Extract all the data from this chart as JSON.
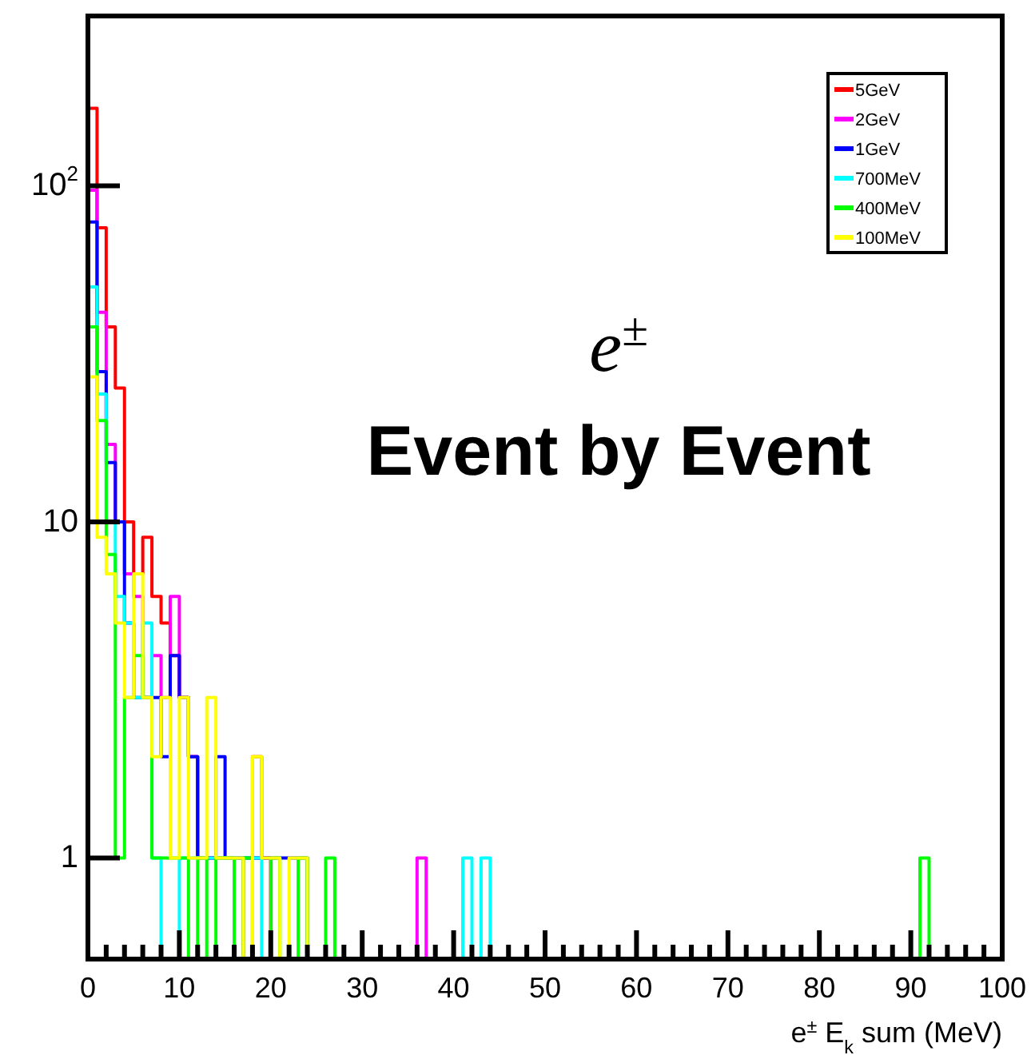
{
  "chart_data": {
    "type": "histogram",
    "xlabel": "e$^{±}$ E$_{k}$ sum (MeV)",
    "annotations": [
      "e$^{±}$",
      "Event by Event"
    ],
    "log": "y",
    "legend": "top right",
    "xlim": [
      0,
      100
    ],
    "ylim": [
      0.5,
      320
    ],
    "xticks": [
      0,
      {
        "value": 2,
        "label": null
      },
      {
        "value": 4,
        "label": null
      },
      {
        "value": 6,
        "label": null
      },
      {
        "value": 8,
        "label": null
      },
      10,
      {
        "value": 12,
        "label": null
      },
      {
        "value": 14,
        "label": null
      },
      {
        "value": 16,
        "label": null
      },
      {
        "value": 18,
        "label": null
      },
      20,
      {
        "value": 22,
        "label": null
      },
      {
        "value": 24,
        "label": null
      },
      {
        "value": 26,
        "label": null
      },
      {
        "value": 28,
        "label": null
      },
      30,
      {
        "value": 32,
        "label": null
      },
      {
        "value": 34,
        "label": null
      },
      {
        "value": 36,
        "label": null
      },
      {
        "value": 38,
        "label": null
      },
      40,
      {
        "value": 42,
        "label": null
      },
      {
        "value": 44,
        "label": null
      },
      {
        "value": 46,
        "label": null
      },
      {
        "value": 48,
        "label": null
      },
      50,
      {
        "value": 52,
        "label": null
      },
      {
        "value": 54,
        "label": null
      },
      {
        "value": 56,
        "label": null
      },
      {
        "value": 58,
        "label": null
      },
      60,
      {
        "value": 62,
        "label": null
      },
      {
        "value": 64,
        "label": null
      },
      {
        "value": 66,
        "label": null
      },
      {
        "value": 68,
        "label": null
      },
      70,
      {
        "value": 72,
        "label": null
      },
      {
        "value": 74,
        "label": null
      },
      {
        "value": 76,
        "label": null
      },
      {
        "value": 78,
        "label": null
      },
      80,
      {
        "value": 82,
        "label": null
      },
      {
        "value": 84,
        "label": null
      },
      {
        "value": 86,
        "label": null
      },
      {
        "value": 88,
        "label": null
      },
      90,
      {
        "value": 92,
        "label": null
      },
      {
        "value": 94,
        "label": null
      },
      {
        "value": 96,
        "label": null
      },
      {
        "value": 98,
        "label": null
      },
      100
    ],
    "yticks": [
      1,
      10,
      {
        "value": 100,
        "label": "10$^{2}$"
      }
    ],
    "bins": [
      0,
      1,
      2,
      3,
      4,
      5,
      6,
      7,
      8,
      9,
      10,
      11,
      12,
      13,
      14,
      15,
      16,
      17,
      18,
      19,
      20,
      21,
      22,
      23,
      24,
      25,
      26,
      27,
      28,
      29,
      30,
      31,
      32,
      33,
      34,
      35,
      36,
      37,
      38,
      39,
      40,
      41,
      42,
      43,
      44,
      45,
      46,
      47,
      48,
      49,
      50,
      51,
      52,
      53,
      54,
      55,
      56,
      57,
      58,
      59,
      60,
      61,
      62,
      63,
      64,
      65,
      66,
      67,
      68,
      69,
      70,
      71,
      72,
      73,
      74,
      75,
      76,
      77,
      78,
      79,
      80,
      81,
      82,
      83,
      84,
      85,
      86,
      87,
      88,
      89,
      90,
      91,
      92,
      93,
      94,
      95,
      96,
      97,
      98,
      99,
      100
    ],
    "series": [
      {
        "name": "5GeV",
        "color": "#ff0000",
        "values": [
          170,
          75,
          38,
          25,
          10,
          7,
          9,
          6,
          5,
          4,
          3,
          2,
          1,
          1,
          1,
          1,
          1,
          1,
          2,
          1,
          null,
          null,
          null,
          null,
          null,
          null,
          null,
          null,
          null,
          null,
          null,
          null,
          null,
          null,
          null,
          null,
          null,
          null,
          null,
          null,
          null,
          null,
          null,
          null,
          null,
          null,
          null,
          null,
          null,
          null,
          null,
          null,
          null,
          null,
          null,
          null,
          null,
          null,
          null,
          null,
          null,
          null,
          null,
          null,
          null,
          null,
          null,
          null,
          null,
          null,
          null,
          null,
          null,
          null,
          null,
          null,
          null,
          null,
          null,
          null,
          null,
          null,
          null,
          null,
          null,
          null,
          null,
          null,
          null,
          null,
          null,
          null,
          null,
          null,
          null,
          null,
          null,
          null,
          null,
          null
        ]
      },
      {
        "name": "2GeV",
        "color": "#ff00ff",
        "values": [
          97,
          42,
          17,
          10,
          7,
          6,
          3,
          4,
          3,
          6,
          3,
          2,
          1,
          1,
          1,
          1,
          1,
          null,
          1,
          1,
          null,
          null,
          null,
          null,
          null,
          null,
          null,
          null,
          null,
          null,
          null,
          null,
          null,
          null,
          null,
          null,
          1,
          null,
          null,
          null,
          null,
          null,
          null,
          null,
          null,
          null,
          null,
          null,
          null,
          null,
          null,
          null,
          null,
          null,
          null,
          null,
          null,
          null,
          null,
          null,
          null,
          null,
          null,
          null,
          null,
          null,
          null,
          null,
          null,
          null,
          null,
          null,
          null,
          null,
          null,
          null,
          null,
          null,
          null,
          null,
          null,
          null,
          null,
          null,
          null,
          null,
          null,
          null,
          null,
          null,
          null,
          null,
          null,
          null,
          null,
          null,
          null,
          null,
          null,
          null
        ]
      },
      {
        "name": "1GeV",
        "color": "#0000ff",
        "values": [
          78,
          28,
          15,
          10,
          5,
          3,
          3,
          3,
          2,
          4,
          3,
          2,
          1,
          1,
          2,
          1,
          1,
          1,
          1,
          1,
          1,
          1,
          1,
          1,
          null,
          null,
          null,
          null,
          null,
          null,
          null,
          null,
          null,
          null,
          null,
          null,
          null,
          null,
          null,
          null,
          null,
          null,
          null,
          null,
          null,
          null,
          null,
          null,
          null,
          null,
          null,
          null,
          null,
          null,
          null,
          null,
          null,
          null,
          null,
          null,
          null,
          null,
          null,
          null,
          null,
          null,
          null,
          null,
          null,
          null,
          null,
          null,
          null,
          null,
          null,
          null,
          null,
          null,
          null,
          null,
          null,
          null,
          null,
          null,
          null,
          null,
          null,
          null,
          null,
          null,
          null,
          null,
          null,
          null,
          null,
          null,
          null,
          null,
          null,
          null
        ]
      },
      {
        "name": "700MeV",
        "color": "#00ffff",
        "values": [
          50,
          24,
          10,
          6,
          5,
          3,
          5,
          1,
          null,
          null,
          1,
          1,
          1,
          1,
          1,
          1,
          1,
          1,
          1,
          null,
          null,
          null,
          null,
          null,
          null,
          null,
          null,
          null,
          null,
          null,
          null,
          null,
          null,
          null,
          null,
          null,
          null,
          null,
          null,
          null,
          null,
          1,
          null,
          1,
          null,
          null,
          null,
          null,
          null,
          null,
          null,
          null,
          null,
          null,
          null,
          null,
          null,
          null,
          null,
          null,
          null,
          null,
          null,
          null,
          null,
          null,
          null,
          null,
          null,
          null,
          null,
          null,
          null,
          null,
          null,
          null,
          null,
          null,
          null,
          null,
          null,
          null,
          null,
          null,
          null,
          null,
          null,
          null,
          null,
          null,
          null,
          null,
          null,
          null,
          null,
          null,
          null,
          null,
          null,
          null
        ]
      },
      {
        "name": "400MeV",
        "color": "#00ff00",
        "values": [
          38,
          20,
          8,
          1,
          3,
          4,
          3,
          1,
          1,
          1,
          1,
          null,
          1,
          null,
          1,
          1,
          null,
          1,
          null,
          null,
          1,
          null,
          null,
          1,
          null,
          null,
          1,
          null,
          null,
          null,
          null,
          null,
          null,
          null,
          null,
          null,
          null,
          null,
          null,
          null,
          null,
          null,
          null,
          null,
          null,
          null,
          null,
          null,
          null,
          null,
          null,
          null,
          null,
          null,
          null,
          null,
          null,
          null,
          null,
          null,
          null,
          null,
          null,
          null,
          null,
          null,
          null,
          null,
          null,
          null,
          null,
          null,
          null,
          null,
          null,
          null,
          null,
          null,
          null,
          null,
          null,
          null,
          null,
          null,
          null,
          null,
          null,
          null,
          null,
          null,
          null,
          1,
          null,
          null,
          null,
          null,
          null,
          null,
          null,
          null
        ]
      },
      {
        "name": "100MeV",
        "color": "#ffff00",
        "values": [
          27,
          9,
          7,
          5,
          3,
          7,
          3,
          2,
          3,
          1,
          3,
          1,
          1,
          3,
          1,
          1,
          1,
          null,
          2,
          1,
          1,
          null,
          1,
          1,
          null,
          null,
          null,
          null,
          null,
          null,
          null,
          null,
          null,
          null,
          null,
          null,
          null,
          null,
          null,
          null,
          null,
          null,
          null,
          null,
          null,
          null,
          null,
          null,
          null,
          null,
          null,
          null,
          null,
          null,
          null,
          null,
          null,
          null,
          null,
          null,
          null,
          null,
          null,
          null,
          null,
          null,
          null,
          null,
          null,
          null,
          null,
          null,
          null,
          null,
          null,
          null,
          null,
          null,
          null,
          null,
          null,
          null,
          null,
          null,
          null,
          null,
          null,
          null,
          null,
          null,
          null,
          null,
          null,
          null,
          null,
          null,
          null,
          null,
          null,
          null
        ]
      }
    ]
  }
}
